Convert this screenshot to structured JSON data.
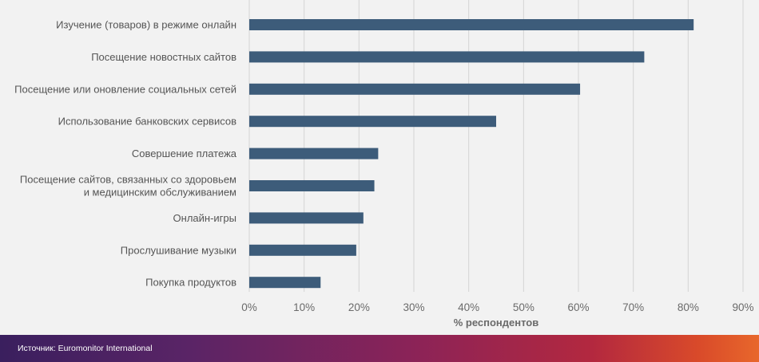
{
  "chart_data": {
    "type": "bar",
    "orientation": "horizontal",
    "categories": [
      [
        "Изучение (товаров) в режиме онлайн"
      ],
      [
        "Посещение новостных сайтов"
      ],
      [
        "Посещение или оновление социальных сетей"
      ],
      [
        "Использование банковских сервисов"
      ],
      [
        "Совершение платежа"
      ],
      [
        "Посещение сайтов, связанных со здоровьем",
        "и медицинским обслуживанием"
      ],
      [
        "Онлайн-игры"
      ],
      [
        "Прослушивание музыки"
      ],
      [
        "Покупка продуктов"
      ]
    ],
    "values": [
      81,
      72,
      60.3,
      45,
      23.5,
      22.8,
      20.8,
      19.5,
      13
    ],
    "xlim": [
      0,
      90
    ],
    "xticks": [
      0,
      10,
      20,
      30,
      40,
      50,
      60,
      70,
      80,
      90
    ],
    "xtick_labels": [
      "0%",
      "10%",
      "20%",
      "30%",
      "40%",
      "50%",
      "60%",
      "70%",
      "80%",
      "90%"
    ],
    "xlabel": "% респондентов",
    "grid": "vertical",
    "bar_color": "#3d5c7a",
    "grid_color": "#d4d4d4"
  },
  "footer": {
    "source": "Источник: Euromonitor International"
  }
}
